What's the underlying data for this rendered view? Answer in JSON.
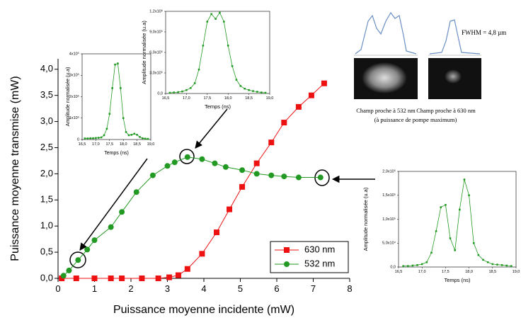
{
  "chart_data": [
    {
      "type": "line",
      "xlabel": "Puissance moyenne incidente (mW)",
      "ylabel": "Puissance moyenne transmise (mW)",
      "xlim": [
        0,
        8
      ],
      "ylim": [
        0,
        4.2
      ],
      "xticks": [
        0,
        1,
        2,
        3,
        4,
        5,
        6,
        7,
        8
      ],
      "yticks": [
        {
          "value": 0,
          "label": "0,0"
        },
        {
          "value": 0.5,
          "label": "0,5"
        },
        {
          "value": 1,
          "label": "1,0"
        },
        {
          "value": 1.5,
          "label": "1,5"
        },
        {
          "value": 2,
          "label": "2,0"
        },
        {
          "value": 2.5,
          "label": "2,5"
        },
        {
          "value": 3,
          "label": "3,0"
        },
        {
          "value": 3.5,
          "label": "3,5"
        },
        {
          "value": 4,
          "label": "4,0"
        }
      ],
      "legend": "lower right",
      "series": [
        {
          "name": "630 nm",
          "color": "#ee1111",
          "marker": "square",
          "x": [
            0.1,
            0.5,
            1.0,
            1.45,
            1.75,
            2.3,
            2.75,
            3.05,
            3.3,
            3.55,
            3.95,
            4.35,
            4.7,
            5.05,
            5.45,
            5.85,
            6.2,
            6.6,
            6.95,
            7.3
          ],
          "values": [
            0,
            0,
            0,
            0,
            0,
            0,
            0,
            0.02,
            0.06,
            0.18,
            0.47,
            0.88,
            1.32,
            1.75,
            2.2,
            2.6,
            2.98,
            3.28,
            3.5,
            3.73
          ]
        },
        {
          "name": "532 nm",
          "color": "#229922",
          "marker": "circle",
          "x": [
            0.15,
            0.3,
            0.55,
            0.8,
            1.0,
            1.45,
            1.75,
            2.15,
            2.6,
            3.0,
            3.2,
            3.55,
            3.95,
            4.3,
            4.6,
            5.05,
            5.45,
            5.85,
            6.2,
            6.6,
            7.2
          ],
          "values": [
            0.05,
            0.15,
            0.35,
            0.55,
            0.73,
            0.98,
            1.27,
            1.65,
            1.97,
            2.15,
            2.22,
            2.32,
            2.28,
            2.2,
            2.13,
            2.07,
            2.0,
            1.97,
            1.95,
            1.93,
            1.93
          ]
        }
      ]
    },
    {
      "type": "line",
      "xlabel": "Temps (ns)",
      "ylabel": "Amplitude normalisée (u.a)",
      "color": "#229922",
      "xlim": [
        16.5,
        19.0
      ],
      "ylim": [
        0,
        400000
      ],
      "xticks": [
        {
          "value": 16.5,
          "label": "16,5"
        },
        {
          "value": 17.0,
          "label": "17,0"
        },
        {
          "value": 17.5,
          "label": "17,5"
        },
        {
          "value": 18.0,
          "label": "18,0"
        },
        {
          "value": 18.5,
          "label": "18,5"
        },
        {
          "value": 19.0,
          "label": "19,0"
        }
      ],
      "yticks": [
        0,
        {
          "value": 100000,
          "label": "1x10⁵"
        },
        {
          "value": 200000,
          "label": "2x10⁵"
        },
        {
          "value": 300000,
          "label": "3x10⁵"
        },
        {
          "value": 400000,
          "label": "4x10⁵"
        }
      ],
      "x": [
        16.6,
        16.7,
        16.8,
        16.9,
        17.0,
        17.1,
        17.2,
        17.3,
        17.4,
        17.5,
        17.6,
        17.7,
        17.8,
        17.9,
        18.0,
        18.1,
        18.2,
        18.3,
        18.4,
        18.5,
        18.6,
        18.7,
        18.8,
        18.9
      ],
      "values": [
        5000,
        5000,
        6000,
        6000,
        7000,
        8000,
        10000,
        20000,
        50000,
        120000,
        240000,
        350000,
        355000,
        240000,
        100000,
        35000,
        20000,
        22000,
        27000,
        22000,
        12000,
        6000,
        4000,
        3000
      ]
    },
    {
      "type": "line",
      "xlabel": "Temps (ns)",
      "ylabel": "Amplitude normalisée (u.a)",
      "color": "#229922",
      "xlim": [
        16.5,
        19.0
      ],
      "ylim": [
        0,
        1200000
      ],
      "xticks": [
        {
          "value": 16.5,
          "label": "16,5"
        },
        {
          "value": 17.0,
          "label": "17,0"
        },
        {
          "value": 17.5,
          "label": "17,5"
        },
        {
          "value": 18.0,
          "label": "18,0"
        },
        {
          "value": 18.5,
          "label": "18,5"
        },
        {
          "value": 19.0,
          "label": "19,0"
        }
      ],
      "yticks": [
        {
          "value": 0,
          "label": "0,0"
        },
        {
          "value": 300000,
          "label": "3,0x10⁵"
        },
        {
          "value": 600000,
          "label": "6,0x10⁵"
        },
        {
          "value": 900000,
          "label": "9,0x10⁵"
        },
        {
          "value": 1200000,
          "label": "1,2x10⁶"
        }
      ],
      "x": [
        16.6,
        16.7,
        16.8,
        16.9,
        17.0,
        17.1,
        17.2,
        17.3,
        17.4,
        17.5,
        17.6,
        17.7,
        17.8,
        17.9,
        18.0,
        18.1,
        18.2,
        18.3,
        18.4,
        18.5,
        18.6,
        18.7,
        18.8,
        18.9
      ],
      "values": [
        10000,
        15000,
        20000,
        30000,
        50000,
        80000,
        150000,
        350000,
        700000,
        1050000,
        1160000,
        1090000,
        1180000,
        1050000,
        700000,
        400000,
        200000,
        110000,
        70000,
        50000,
        35000,
        25000,
        15000,
        10000
      ]
    },
    {
      "type": "line",
      "xlabel": "Temps (ns)",
      "ylabel": "Amplitude normalisée (u.a)",
      "color": "#229922",
      "xlim": [
        16.5,
        19.0
      ],
      "ylim": [
        0,
        200000
      ],
      "xticks": [
        {
          "value": 16.5,
          "label": "16,5"
        },
        {
          "value": 17.0,
          "label": "17,0"
        },
        {
          "value": 17.5,
          "label": "17,5"
        },
        {
          "value": 18.0,
          "label": "18,0"
        },
        {
          "value": 18.5,
          "label": "18,5"
        },
        {
          "value": 19.0,
          "label": "19,0"
        }
      ],
      "yticks": [
        {
          "value": 0,
          "label": "0,0"
        },
        {
          "value": 50000,
          "label": "5,0x10⁴"
        },
        {
          "value": 100000,
          "label": "1,0x10⁵"
        },
        {
          "value": 150000,
          "label": "1,5x10⁵"
        },
        {
          "value": 200000,
          "label": "2,0x10⁵"
        }
      ],
      "x": [
        16.6,
        16.7,
        16.8,
        16.9,
        17.0,
        17.1,
        17.2,
        17.3,
        17.4,
        17.5,
        17.6,
        17.7,
        17.8,
        17.9,
        18.0,
        18.1,
        18.2,
        18.3,
        18.4,
        18.5,
        18.6,
        18.7,
        18.8,
        18.9
      ],
      "values": [
        2000,
        2000,
        3000,
        4000,
        6000,
        10000,
        30000,
        75000,
        125000,
        130000,
        60000,
        35000,
        120000,
        183000,
        150000,
        50000,
        25000,
        15000,
        10000,
        6000,
        5000,
        4000,
        3000,
        2000
      ]
    }
  ],
  "annotations": {
    "fwhm": "FWHM = 4,8 µm",
    "near_field_532": "Champ proche à 532 nm",
    "near_field_630": "Champ proche à 630 nm",
    "note": "(à puissance de pompe maximum)"
  }
}
